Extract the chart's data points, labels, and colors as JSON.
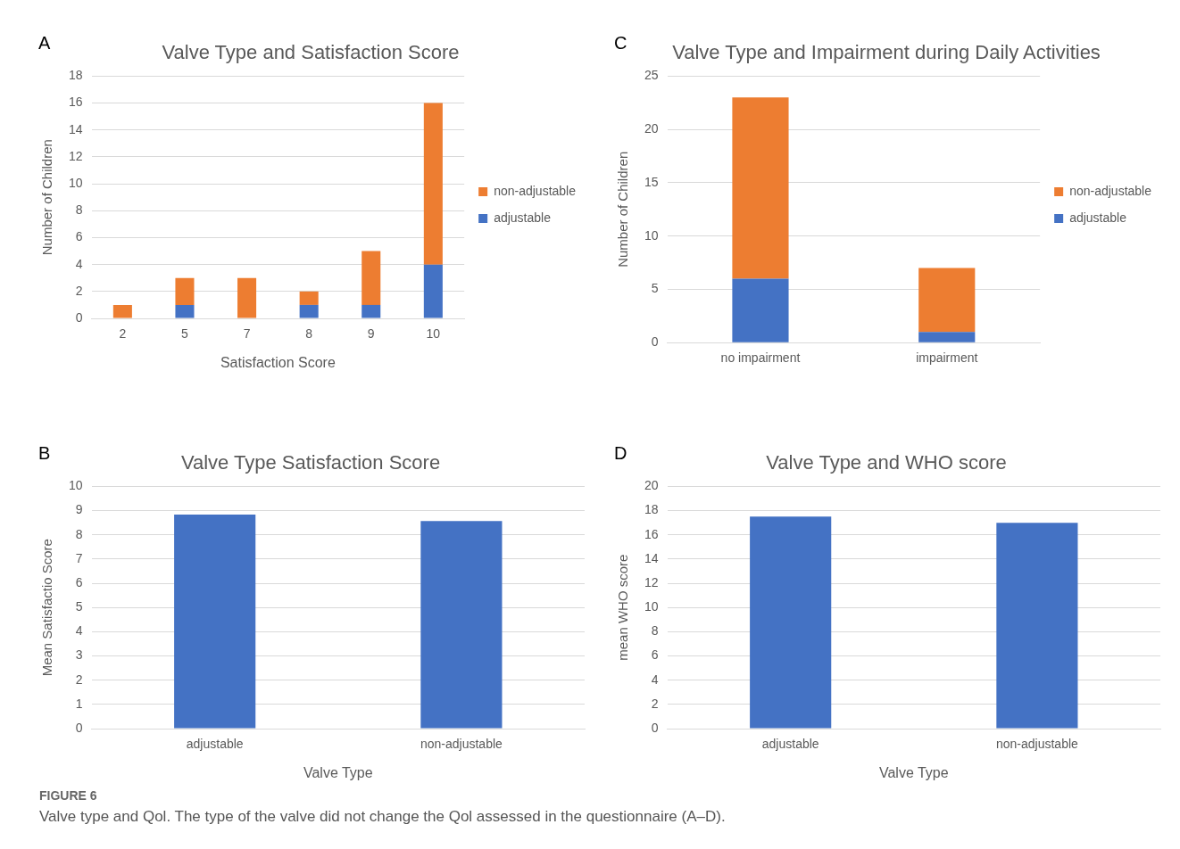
{
  "chart_data": [
    {
      "type": "bar",
      "title": "Valve Type and Satisfaction Score",
      "xlabel": "Satisfaction Score",
      "ylabel": "Number of Children",
      "categories": [
        "2",
        "5",
        "7",
        "8",
        "9",
        "10"
      ],
      "stacked": true,
      "series": [
        {
          "name": "adjustable",
          "color": "#4472c4",
          "values": [
            0,
            1,
            0,
            1,
            1,
            4
          ]
        },
        {
          "name": "non-adjustable",
          "color": "#ed7d31",
          "values": [
            1,
            2,
            3,
            1,
            4,
            12
          ]
        }
      ],
      "ylim": [
        0,
        18
      ],
      "yticks": [
        0,
        2,
        4,
        6,
        8,
        10,
        12,
        14,
        16,
        18
      ],
      "grid": "y",
      "legend": "right",
      "annotations": [
        "A"
      ]
    },
    {
      "type": "bar",
      "title": "Valve Type and Impairment during Daily Activities",
      "ylabel": "Number of Children",
      "categories": [
        "no impairment",
        "impairment"
      ],
      "stacked": true,
      "series": [
        {
          "name": "adjustable",
          "color": "#4472c4",
          "values": [
            6,
            1
          ]
        },
        {
          "name": "non-adjustable",
          "color": "#ed7d31",
          "values": [
            17,
            6
          ]
        }
      ],
      "ylim": [
        0,
        25
      ],
      "yticks": [
        0,
        5,
        10,
        15,
        20,
        25
      ],
      "grid": "y",
      "legend": "right",
      "annotations": [
        "C"
      ]
    },
    {
      "type": "bar",
      "title": "Valve Type Satisfaction Score",
      "xlabel": "Valve Type",
      "ylabel": "Mean Satisfactio Score",
      "categories": [
        "adjustable",
        "non-adjustable"
      ],
      "values": [
        8.84,
        8.57
      ],
      "color": "#4472c4",
      "ylim": [
        0,
        10
      ],
      "yticks": [
        0,
        1,
        2,
        3,
        4,
        5,
        6,
        7,
        8,
        9,
        10
      ],
      "grid": "y",
      "annotations": [
        "B"
      ]
    },
    {
      "type": "bar",
      "title": "Valve Type and WHO score",
      "xlabel": "Valve Type",
      "ylabel": "mean WHO score",
      "categories": [
        "adjustable",
        "non-adjustable"
      ],
      "values": [
        17.5,
        17.0
      ],
      "color": "#4472c4",
      "ylim": [
        0,
        20
      ],
      "yticks": [
        0,
        2,
        4,
        6,
        8,
        10,
        12,
        14,
        16,
        18,
        20
      ],
      "grid": "y",
      "annotations": [
        "D",
        "FIGURE 6",
        "Valve type and Qol. The type of the valve did not change the Qol assessed in the questionnaire (A–D)."
      ]
    }
  ]
}
